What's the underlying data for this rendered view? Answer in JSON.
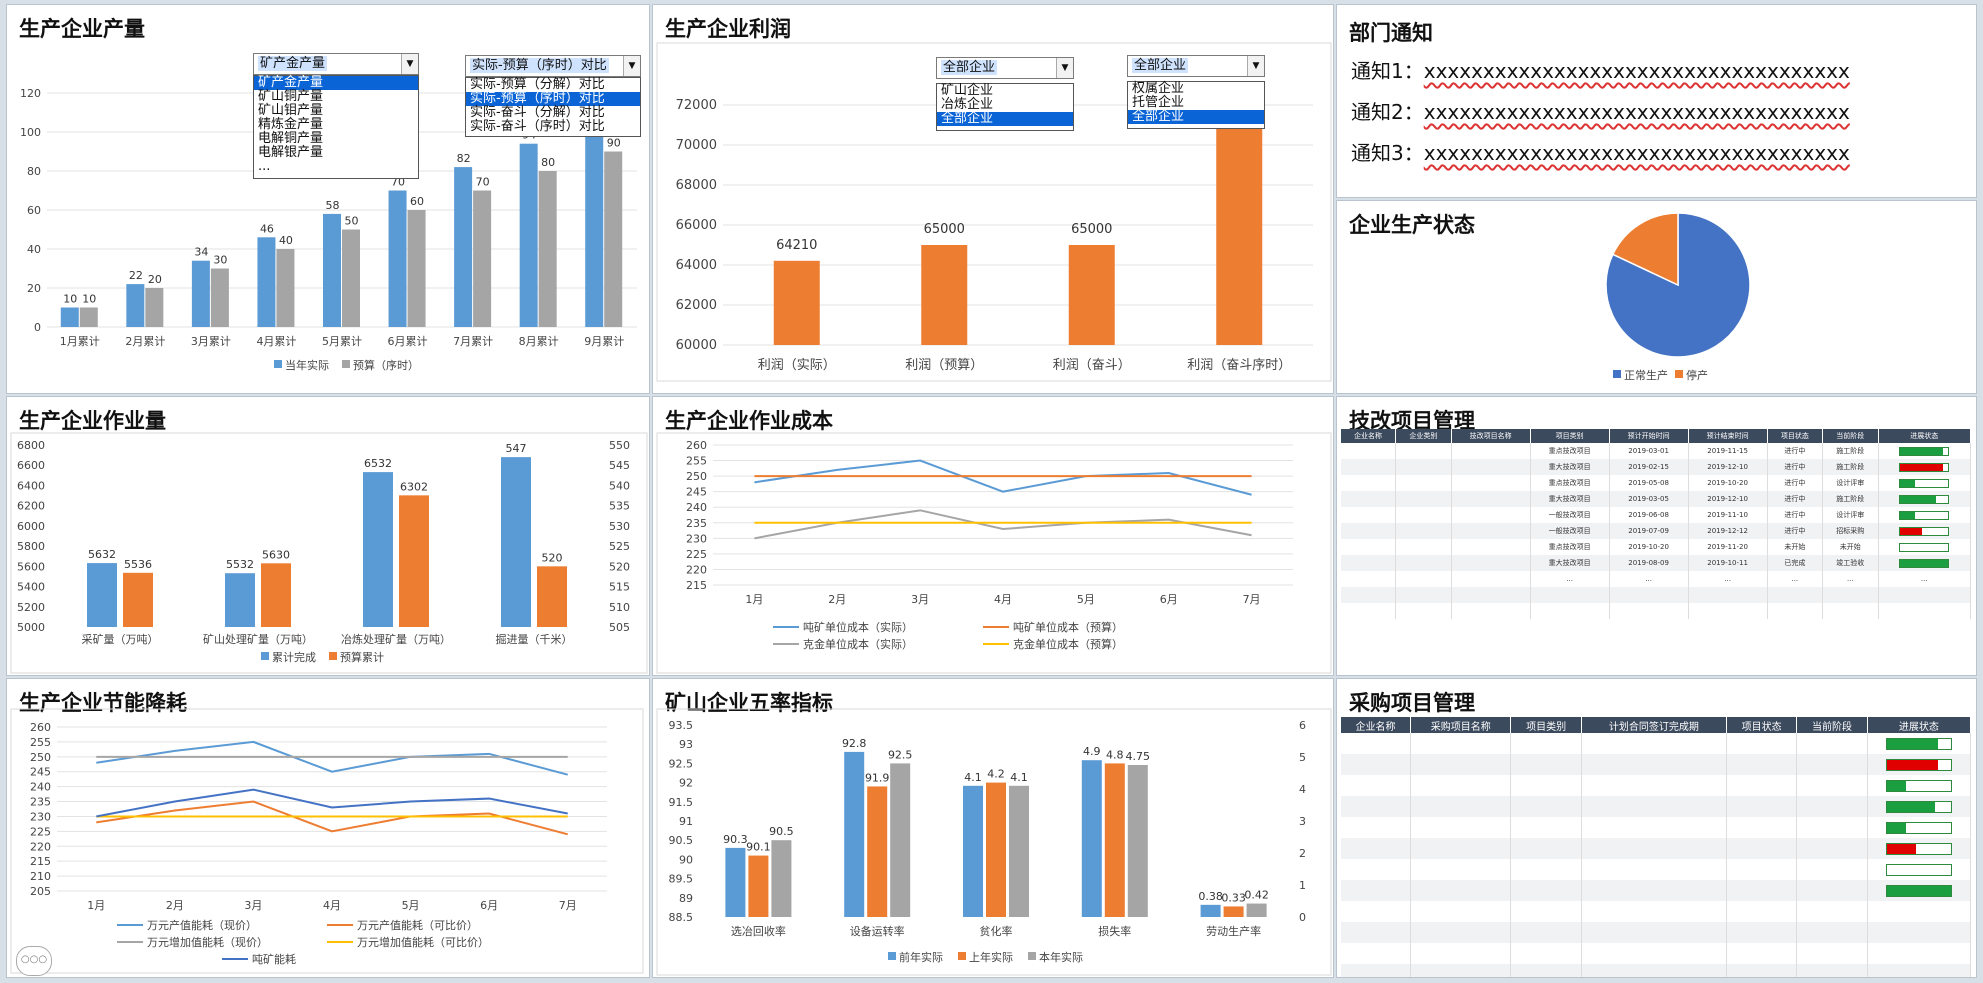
{
  "colors": {
    "blue": "#5b9bd5",
    "orange": "#ed7d31",
    "gray": "#a5a5a5",
    "yellow": "#ffc000",
    "darkblue": "#4472c4",
    "green": "#1a9e3f",
    "red": "#e00000"
  },
  "panels": {
    "output": {
      "title": "生产企业产量",
      "dropdown1": {
        "value": "矿产金产量",
        "options": [
          "矿产金产量",
          "矿山铜产量",
          "矿山钼产量",
          "精炼金产量",
          "电解铜产量",
          "电解银产量",
          "..."
        ],
        "selected_index": 0
      },
      "dropdown2": {
        "value": "实际-预算（序时）对比",
        "options": [
          "实际-预算（分解）对比",
          "实际-预算（序时）对比",
          "实际-奋斗（分解）对比",
          "实际-奋斗（序时）对比"
        ],
        "selected_index": 1
      },
      "legend": [
        "当年实际",
        "预算（序时）"
      ]
    },
    "profit": {
      "title": "生产企业利润",
      "dropdown1": {
        "value": "全部企业",
        "options": [
          "矿山企业",
          "冶炼企业",
          "全部企业"
        ],
        "selected_index": 2
      },
      "dropdown2": {
        "value": "全部企业",
        "options": [
          "权属企业",
          "托管企业",
          "全部企业"
        ],
        "selected_index": 2
      }
    },
    "notice": {
      "title": "部门通知",
      "items": [
        {
          "label": "通知1：",
          "text": "xxxxxxxxxxxxxxxxxxxxxxxxxxxxxxxxxxxx"
        },
        {
          "label": "通知2：",
          "text": "xxxxxxxxxxxxxxxxxxxxxxxxxxxxxxxxxxxx"
        },
        {
          "label": "通知3：",
          "text": "xxxxxxxxxxxxxxxxxxxxxxxxxxxxxxxxxxxx"
        }
      ]
    },
    "status": {
      "title": "企业生产状态"
    },
    "workload": {
      "title": "生产企业作业量"
    },
    "cost": {
      "title": "生产企业作业成本"
    },
    "tech": {
      "title": "技改项目管理",
      "headers": [
        "企业名称",
        "企业类别",
        "技改项目名称",
        "项目类别",
        "预计开始时间",
        "预计结束时间",
        "项目状态",
        "当前阶段",
        "进展状态"
      ],
      "rows": [
        {
          "type": "重点技改项目",
          "start": "2019-03-01",
          "end": "2019-11-15",
          "state": "进行中",
          "stage": "施工阶段",
          "progress": 0.9,
          "color": "#1a9e3f"
        },
        {
          "type": "重大技改项目",
          "start": "2019-02-15",
          "end": "2019-12-10",
          "state": "进行中",
          "stage": "施工阶段",
          "progress": 0.9,
          "color": "#e00000"
        },
        {
          "type": "重点技改项目",
          "start": "2019-05-08",
          "end": "2019-10-20",
          "state": "进行中",
          "stage": "设计评审",
          "progress": 0.3,
          "color": "#1a9e3f"
        },
        {
          "type": "重大技改项目",
          "start": "2019-03-05",
          "end": "2019-12-10",
          "state": "进行中",
          "stage": "施工阶段",
          "progress": 0.75,
          "color": "#1a9e3f"
        },
        {
          "type": "一般技改项目",
          "start": "2019-06-08",
          "end": "2019-11-10",
          "state": "进行中",
          "stage": "设计评审",
          "progress": 0.3,
          "color": "#1a9e3f"
        },
        {
          "type": "一般技改项目",
          "start": "2019-07-09",
          "end": "2019-12-12",
          "state": "进行中",
          "stage": "招标采购",
          "progress": 0.45,
          "color": "#e00000"
        },
        {
          "type": "重点技改项目",
          "start": "2019-10-20",
          "end": "2019-11-20",
          "state": "未开始",
          "stage": "未开始",
          "progress": 0,
          "color": "#1a9e3f"
        },
        {
          "type": "重大技改项目",
          "start": "2019-08-09",
          "end": "2019-10-11",
          "state": "已完成",
          "stage": "竣工验收",
          "progress": 1,
          "color": "#1a9e3f"
        }
      ],
      "ellipsis": "..."
    },
    "energy": {
      "title": "生产企业节能降耗"
    },
    "fiverate": {
      "title": "矿山企业五率指标"
    },
    "purchase": {
      "title": "采购项目管理",
      "headers": [
        "企业名称",
        "采购项目名称",
        "项目类别",
        "计划合同签订完成期",
        "项目状态",
        "当前阶段",
        "进展状态"
      ],
      "rows": [
        {
          "progress": 0.8,
          "color": "#1a9e3f"
        },
        {
          "progress": 0.8,
          "color": "#e00000"
        },
        {
          "progress": 0.3,
          "color": "#1a9e3f"
        },
        {
          "progress": 0.75,
          "color": "#1a9e3f"
        },
        {
          "progress": 0.3,
          "color": "#1a9e3f"
        },
        {
          "progress": 0.45,
          "color": "#e00000"
        },
        {
          "progress": 0,
          "color": "#1a9e3f"
        },
        {
          "progress": 1,
          "color": "#1a9e3f"
        }
      ]
    }
  },
  "scroll_indicator": "○○○",
  "chart_data": [
    {
      "id": "output",
      "type": "bar",
      "title": "",
      "categories": [
        "1月累计",
        "2月累计",
        "3月累计",
        "4月累计",
        "5月累计",
        "6月累计",
        "7月累计",
        "8月累计",
        "9月累计"
      ],
      "series": [
        {
          "name": "当年实际",
          "values": [
            10,
            22,
            34,
            46,
            58,
            70,
            82,
            94,
            106
          ]
        },
        {
          "name": "预算（序时）",
          "values": [
            10,
            20,
            30,
            40,
            50,
            60,
            70,
            80,
            90
          ]
        }
      ],
      "ylim": [
        0,
        120
      ],
      "yticks": [
        0,
        20,
        40,
        60,
        80,
        100,
        120
      ],
      "legend": "bottom"
    },
    {
      "id": "profit",
      "type": "bar",
      "categories": [
        "利润（实际）",
        "利润（预算）",
        "利润（奋斗）",
        "利润（奋斗序时）"
      ],
      "values": [
        64210,
        65000,
        65000,
        72000
      ],
      "data_labels": [
        "64210",
        "65000",
        "65000",
        ""
      ],
      "ylim": [
        60000,
        72000
      ],
      "yticks": [
        60000,
        62000,
        64000,
        66000,
        68000,
        70000,
        72000
      ]
    },
    {
      "id": "status",
      "type": "pie",
      "categories": [
        "正常生产",
        "停产"
      ],
      "values": [
        82,
        18
      ],
      "legend": "bottom"
    },
    {
      "id": "workload",
      "type": "bar",
      "categories": [
        "采矿量（万吨）",
        "矿山处理矿量（万吨）",
        "冶炼处理矿量（万吨）",
        "掘进量（千米）"
      ],
      "series": [
        {
          "name": "累计完成",
          "values": [
            5632,
            5532,
            6532,
            547
          ]
        },
        {
          "name": "预算累计",
          "values": [
            5536,
            5630,
            6302,
            520
          ]
        }
      ],
      "ylim": [
        5000,
        6800
      ],
      "yticks": [
        5000,
        5200,
        5400,
        5600,
        5800,
        6000,
        6200,
        6400,
        6600,
        6800
      ],
      "y2lim": [
        505,
        550
      ],
      "y2ticks": [
        505,
        510,
        515,
        520,
        525,
        530,
        535,
        540,
        545,
        550
      ],
      "secondary_axis_category": "掘进量（千米）",
      "legend": "bottom"
    },
    {
      "id": "cost",
      "type": "line",
      "categories": [
        "1月",
        "2月",
        "3月",
        "4月",
        "5月",
        "6月",
        "7月"
      ],
      "series": [
        {
          "name": "吨矿单位成本（实际）",
          "values": [
            248,
            252,
            255,
            245,
            250,
            251,
            244
          ]
        },
        {
          "name": "吨矿单位成本（预算）",
          "values": [
            250,
            250,
            250,
            250,
            250,
            250,
            250
          ]
        },
        {
          "name": "克金单位成本（实际）",
          "values": [
            230,
            235,
            239,
            233,
            235,
            236,
            231
          ]
        },
        {
          "name": "克金单位成本（预算）",
          "values": [
            235,
            235,
            235,
            235,
            235,
            235,
            235
          ]
        }
      ],
      "ylim": [
        215,
        260
      ],
      "yticks": [
        215,
        220,
        225,
        230,
        235,
        240,
        245,
        250,
        255,
        260
      ],
      "legend": "bottom"
    },
    {
      "id": "energy",
      "type": "line",
      "categories": [
        "1月",
        "2月",
        "3月",
        "4月",
        "5月",
        "6月",
        "7月"
      ],
      "series": [
        {
          "name": "万元产值能耗（现价）",
          "values": [
            248,
            252,
            255,
            245,
            250,
            251,
            244
          ]
        },
        {
          "name": "万元产值能耗（可比价）",
          "values": [
            228,
            232,
            235,
            225,
            230,
            231,
            224
          ]
        },
        {
          "name": "万元增加值能耗（现价）",
          "values": [
            250,
            250,
            250,
            250,
            250,
            250,
            250
          ]
        },
        {
          "name": "万元增加值能耗（可比价）",
          "values": [
            230,
            230,
            230,
            230,
            230,
            230,
            230
          ]
        },
        {
          "name": "吨矿能耗",
          "values": [
            230,
            235,
            239,
            233,
            235,
            236,
            231
          ]
        }
      ],
      "ylim": [
        205,
        260
      ],
      "yticks": [
        205,
        210,
        215,
        220,
        225,
        230,
        235,
        240,
        245,
        250,
        255,
        260
      ],
      "legend": "bottom"
    },
    {
      "id": "fiverate",
      "type": "bar",
      "categories": [
        "选冶回收率",
        "设备运转率",
        "贫化率",
        "损失率",
        "劳动生产率"
      ],
      "series": [
        {
          "name": "前年实际",
          "values": [
            90.3,
            92.8,
            4.1,
            4.9,
            0.38
          ]
        },
        {
          "name": "上年实际",
          "values": [
            90.1,
            91.9,
            4.2,
            4.8,
            0.33
          ]
        },
        {
          "name": "本年实际",
          "values": [
            90.5,
            92.5,
            4.1,
            4.75,
            0.42
          ]
        }
      ],
      "ylim": [
        88.5,
        93.5
      ],
      "yticks": [
        88.5,
        89,
        89.5,
        90,
        90.5,
        91,
        91.5,
        92,
        92.5,
        93,
        93.5
      ],
      "y2lim": [
        0,
        6
      ],
      "y2ticks": [
        0,
        1,
        2,
        3,
        4,
        5,
        6
      ],
      "secondary_axis_categories": [
        "贫化率",
        "损失率",
        "劳动生产率"
      ],
      "legend": "bottom"
    }
  ]
}
